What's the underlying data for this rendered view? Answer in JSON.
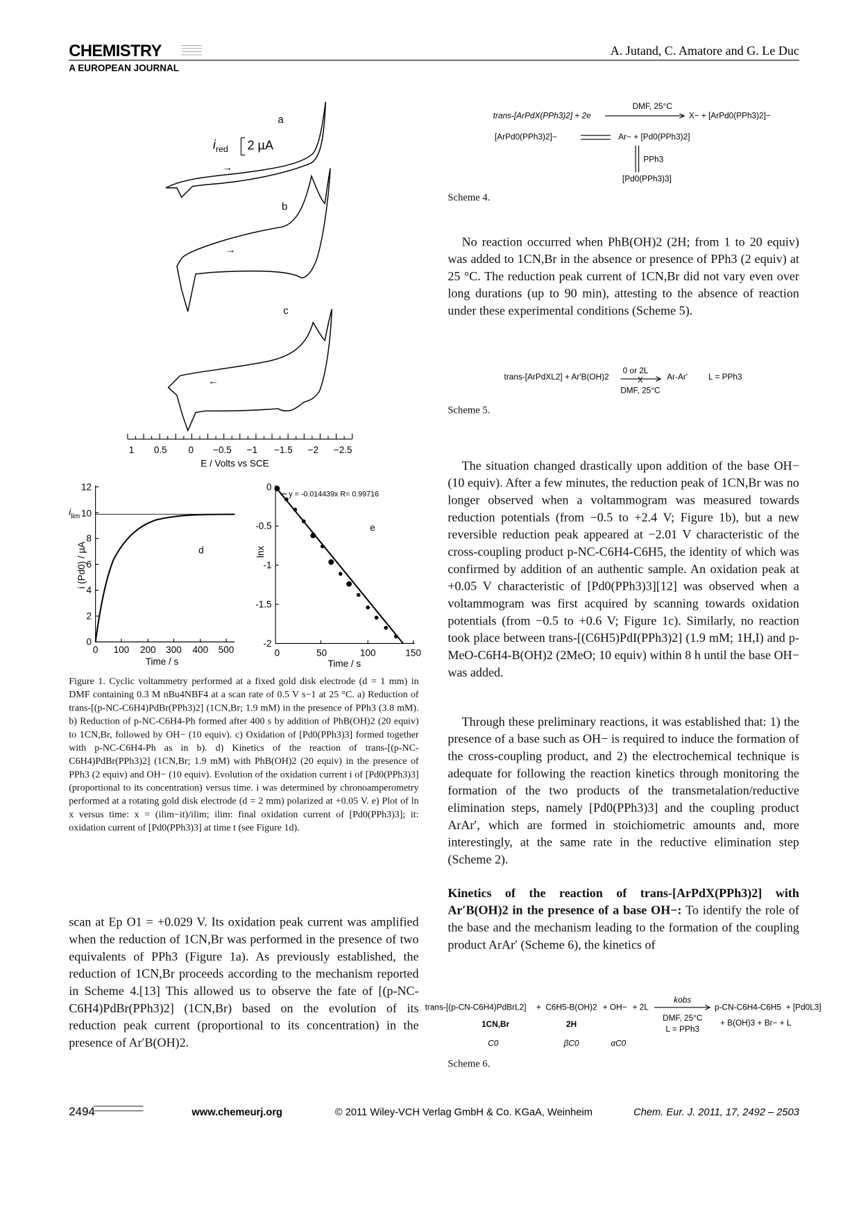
{
  "header": {
    "journal": "CHEMISTRY",
    "subtitle": "A EUROPEAN JOURNAL",
    "authors": "A. Jutand, C. Amatore and G. Le Duc"
  },
  "figure1": {
    "cv": {
      "labels": [
        "a",
        "b",
        "c"
      ],
      "scale_symbol": "i",
      "scale_subscript": "red",
      "scale_value": "2 µA",
      "xticks": [
        "1",
        "0.5",
        "0",
        "−0.5",
        "−1",
        "−1.5",
        "−2",
        "−2.5"
      ],
      "xlabel": "E / Volts vs SCE"
    },
    "panel_d": {
      "label": "d",
      "yticks": [
        "0",
        "2",
        "4",
        "6",
        "8",
        "10",
        "12"
      ],
      "xticks": [
        "0",
        "100",
        "200",
        "300",
        "400",
        "500"
      ],
      "ylabel": "i (Pd0) / µA",
      "xlabel": "Time / s",
      "limit_symbol": "i",
      "limit_subscript": "lim"
    },
    "panel_e": {
      "label": "e",
      "yticks": [
        "0",
        "-0.5",
        "-1",
        "-1.5",
        "-2"
      ],
      "xticks": [
        "0",
        "50",
        "100",
        "150"
      ],
      "ylabel": "lnx",
      "xlabel": "Time / s",
      "fit": "y = -0.014439x   R= 0.99716"
    },
    "caption": "Figure 1. Cyclic voltammetry performed at a fixed gold disk electrode (d = 1 mm) in DMF containing 0.3 M nBu4NBF4 at a scan rate of 0.5 V s−1 at 25 °C. a) Reduction of trans-[(p-NC-C6H4)PdBr(PPh3)2] (1CN,Br; 1.9 mM) in the presence of PPh3 (3.8 mM). b) Reduction of p-NC-C6H4-Ph formed after 400 s by addition of PhB(OH)2 (20 equiv) to 1CN,Br, followed by OH− (10 equiv). c) Oxidation of [Pd0(PPh3)3] formed together with p-NC-C6H4-Ph as in b). d) Kinetics of the reaction of trans-[(p-NC-C6H4)PdBr(PPh3)2] (1CN,Br; 1.9 mM) with PhB(OH)2 (20 equiv) in the presence of PPh3 (2 equiv) and OH− (10 equiv). Evolution of the oxidation current i of [Pd0(PPh3)3] (proportional to its concentration) versus time. i was determined by chronoamperometry performed at a rotating gold disk electrode (d = 2 mm) polarized at +0.05 V. e) Plot of ln x versus time: x = (ilim−it)/ilim; ilim: final oxidation current of [Pd0(PPh3)3]; it: oxidation current of [Pd0(PPh3)3] at time t (see Figure 1d)."
  },
  "left_paragraph": "scan at Ep O1 = +0.029 V. Its oxidation peak current was amplified when the reduction of 1CN,Br was performed in the presence of two equivalents of PPh3 (Figure 1a). As previously established, the reduction of 1CN,Br proceeds according to the mechanism reported in Scheme 4.[13] This allowed us to observe the fate of [(p-NC-C6H4)PdBr(PPh3)2] (1CN,Br) based on the evolution of its reduction peak current (proportional to its concentration) in the presence of Ar′B(OH)2.",
  "scheme4": {
    "reactant": "trans-[ArPdX(PPh3)2] + 2e",
    "conditions": "DMF, 25°C",
    "products": "X− + [ArPd0(PPh3)2]−",
    "anion": "[ArPd0(PPh3)2]−",
    "split": "Ar− + [Pd0(PPh3)2]",
    "ligand": "PPh3",
    "complex": "[Pd0(PPh3)3]",
    "label": "Scheme 4."
  },
  "paragraphs": [
    "No reaction occurred when PhB(OH)2 (2H; from 1 to 20 equiv) was added to 1CN,Br in the absence or presence of PPh3 (2 equiv) at 25 °C. The reduction peak current of 1CN,Br did not vary even over long durations (up to 90 min), attesting to the absence of reaction under these experimental conditions (Scheme 5).",
    "The situation changed drastically upon addition of the base OH− (10 equiv). After a few minutes, the reduction peak of 1CN,Br was no longer observed when a voltammogram was measured towards reduction potentials (from −0.5 to +2.4 V; Figure 1b), but a new reversible reduction peak appeared at −2.01 V characteristic of the cross-coupling product p-NC-C6H4-C6H5, the identity of which was confirmed by addition of an authentic sample. An oxidation peak at +0.05 V characteristic of [Pd0(PPh3)3][12] was observed when a voltammogram was first acquired by scanning towards oxidation potentials (from −0.5 to +0.6 V; Figure 1c). Similarly, no reaction took place between trans-[(C6H5)PdI(PPh3)2] (1.9 mM; 1H,I) and p-MeO-C6H4-B(OH)2 (2MeO; 10 equiv) within 8 h until the base OH− was added.",
    "Through these preliminary reactions, it was established that: 1) the presence of a base such as OH− is required to induce the formation of the cross-coupling product, and 2) the electrochemical technique is adequate for following the reaction kinetics through monitoring the formation of the two products of the transmetalation/reductive elimination steps, namely [Pd0(PPh3)3] and the coupling product ArAr′, which are formed in stoichiometric amounts and, more interestingly, at the same rate in the reductive elimination step (Scheme 2)."
  ],
  "scheme5": {
    "reactants": "trans-[ArPdXL2] + Ar'B(OH)2",
    "above": "0 or 2L",
    "cross": "X",
    "product": "Ar-Ar'",
    "ligand": "L = PPh3",
    "conditions": "DMF, 25°C",
    "label": "Scheme 5."
  },
  "section": {
    "heading": "Kinetics of the reaction of trans-[ArPdX(PPh3)2] with Ar′B(OH)2 in the presence of a base OH−:",
    "text": " To identify the role of the base and the mechanism leading to the formation of the coupling product ArAr′ (Scheme 6), the kinetics of"
  },
  "scheme6": {
    "reactant": "trans-[(p-CN-C6H4)PdBrL2]",
    "plus": "+",
    "boronic": "C6H5-B(OH)2",
    "base": "+ OH−",
    "ligand": "+ 2L",
    "rate": "kobs",
    "conditions": "DMF, 25°C",
    "ligand_def": "L = PPh3",
    "product": "p-CN-C6H4-C6H5",
    "pd": "+ [Pd0L3]",
    "byproducts": "+ B(OH)3 + Br− + L",
    "reactant_id": "1CN,Br",
    "boronic_id": "2H",
    "reactant_conc": "C0",
    "boronic_conc": "βC0",
    "base_conc": "αC0",
    "label": "Scheme 6."
  },
  "footer": {
    "page": "2494",
    "url": "www.chemeurj.org",
    "copyright": "© 2011 Wiley-VCH Verlag GmbH & Co. KGaA, Weinheim",
    "citation": "Chem. Eur. J. 2011, 17, 2492 – 2503"
  }
}
